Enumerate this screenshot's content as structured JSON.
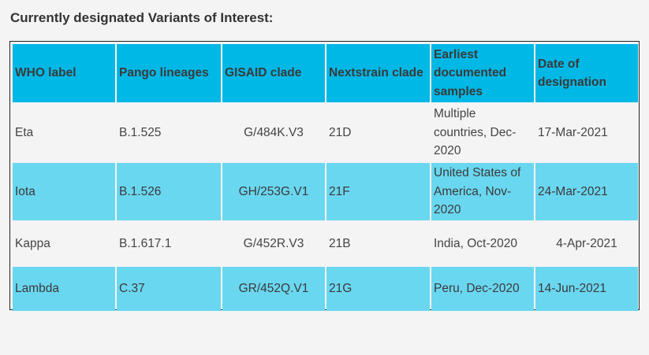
{
  "heading": "Currently designated Variants of Interest:",
  "columns": [
    "WHO label",
    "Pango lineages",
    "GISAID clade",
    "Nextstrain clade",
    "Earliest documented samples",
    "Date of designation"
  ],
  "rows": [
    {
      "who_label": "Eta",
      "pango": "B.1.525",
      "gisaid": "G/484K.V3",
      "nextstrain": "21D",
      "earliest": "Multiple countries, Dec-2020",
      "date": "17-Mar-2021"
    },
    {
      "who_label": "Iota",
      "pango": "B.1.526",
      "gisaid": "GH/253G.V1",
      "nextstrain": "21F",
      "earliest": "United States of America, Nov-2020",
      "date": "24-Mar-2021"
    },
    {
      "who_label": "Kappa",
      "pango": "B.1.617.1",
      "gisaid": "G/452R.V3",
      "nextstrain": "21B",
      "earliest": "India, Oct-2020",
      "date": "4-Apr-2021"
    },
    {
      "who_label": "Lambda",
      "pango": "C.37",
      "gisaid": "GR/452Q.V1",
      "nextstrain": "21G",
      "earliest": "Peru, Dec-2020",
      "date": "14-Jun-2021"
    }
  ],
  "colors": {
    "header_bg": "#00b8e6",
    "row_blue_bg": "#6ad7f0",
    "row_white_bg": "#f4f4f4",
    "page_bg": "#f4f4f4"
  }
}
